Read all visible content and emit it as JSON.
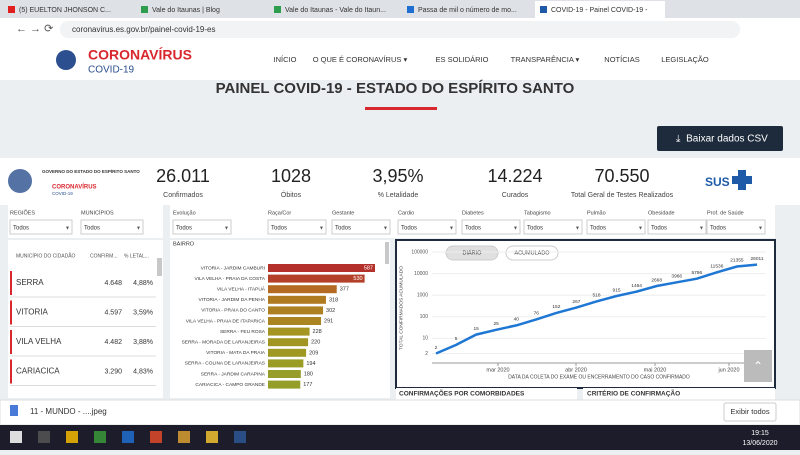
{
  "browser": {
    "tabs": [
      "(5) EUELTON JHONSON C...",
      "Vale do Itaunas | Blog",
      "Vale do Itaunas - Vale do Itaun...",
      "Passa de mil o número de mo...",
      "COVID-19 - Painel COVID-19 -"
    ],
    "url": "coronavirus.es.gov.br/painel-covid-19-es"
  },
  "header": {
    "logo_title": "CORONAVÍRUS",
    "logo_sub": "COVID-19",
    "menu": [
      "INÍCIO",
      "O QUE É CORONAVÍRUS ▾",
      "ES SOLIDÁRIO",
      "TRANSPARÊNCIA ▾",
      "NOTÍCIAS",
      "LEGISLAÇÃO"
    ]
  },
  "page": {
    "title": "PAINEL COVID-19 - ESTADO DO ESPÍRITO SANTO",
    "download_button": "Baixar dados CSV"
  },
  "panel": {
    "gov_text": "GOVERNO DO ESTADO DO ESPÍRITO SANTO",
    "gov_logo_title": "CORONAVÍRUS",
    "gov_logo_sub": "COVID-19",
    "sus": "SUS",
    "stats": [
      {
        "value": "26.011",
        "label": "Confirmados"
      },
      {
        "value": "1028",
        "label": "Óbitos"
      },
      {
        "value": "3,95%",
        "label": "% Letalidade"
      },
      {
        "value": "14.224",
        "label": "Curados"
      },
      {
        "value": "70.550",
        "label": "Total Geral de Testes Realizados"
      }
    ],
    "filters": [
      {
        "label": "REGIÕES",
        "value": "Todos"
      },
      {
        "label": "MUNICÍPIOS",
        "value": "Todos"
      },
      {
        "label": "Evolução",
        "value": "Todos"
      },
      {
        "label": "Raça/Cor",
        "value": "Todos"
      },
      {
        "label": "Gestante",
        "value": "Todos"
      },
      {
        "label": "Cardio",
        "value": "Todos"
      },
      {
        "label": "Diabetes",
        "value": "Todos"
      },
      {
        "label": "Tabagismo",
        "value": "Todos"
      },
      {
        "label": "Pulmão",
        "value": "Todos"
      },
      {
        "label": "Obesidade",
        "value": "Todos"
      },
      {
        "label": "Prof. de Saúde",
        "value": "Todos"
      }
    ],
    "table": {
      "headers": [
        "MUNICÍPIO DO CIDADÃO",
        "CONFIRM...",
        "% LETAL..."
      ],
      "rows": [
        [
          "SERRA",
          "4.648",
          "4,88%"
        ],
        [
          "VITORIA",
          "4.597",
          "3,59%"
        ],
        [
          "VILA VELHA",
          "4.482",
          "3,88%"
        ],
        [
          "CARIACICA",
          "3.290",
          "4,83%"
        ]
      ]
    },
    "bairro_chart": {
      "type": "bar",
      "title": "BAIRRO",
      "categories": [
        "VITORIA - JARDIM CAMBURI",
        "VILA VELHA - PRAIA DA COSTA",
        "VILA VELHA - ITAPUÃ",
        "VITORIA - JARDIM DA PENHA",
        "VITORIA - PRAIA DO CANTO",
        "VILA VELHA - PRAIA DE ITAPARICA",
        "SERRA - FEU ROSA",
        "SERRA - MORADA DE LARANJEIRAS",
        "VITORIA - MATA DA PRAIA",
        "SERRA - COLINA DE LARANJEIRAS",
        "SERRA - JARDIM CARAPINA",
        "CARIACICA - CAMPO GRANDE"
      ],
      "values": [
        587,
        530,
        377,
        318,
        302,
        291,
        228,
        220,
        209,
        194,
        180,
        177
      ],
      "colors": [
        "#b3302b",
        "#b5402a",
        "#b46a22",
        "#b07a20",
        "#ad8121",
        "#ab8521",
        "#a49422",
        "#a29623",
        "#9f9924",
        "#9b9c26",
        "#969d28",
        "#949e29"
      ]
    },
    "line_chart": {
      "type": "line",
      "buttons": [
        "DIÁRIO",
        "ACUMULADO"
      ],
      "ylabel": "TOTAL CONFIRMADOS ACUMULADO",
      "xlabel": "DATA DA COLETA DO EXAME OU ENCERRAMENTO DO CASO CONFIRMADO",
      "log_scale": true,
      "ylim": [
        1,
        100000
      ],
      "yticks": [
        2,
        10,
        100,
        1000,
        10000,
        100000
      ],
      "xtick_labels": [
        "mar 2020",
        "abr 2020",
        "mai 2020",
        "jun 2020"
      ],
      "categories": [
        null,
        null,
        null,
        null,
        null,
        null,
        null,
        null,
        null,
        null,
        null,
        null,
        null,
        null,
        null,
        null,
        null
      ],
      "color": "#1f77d4",
      "values": [
        2,
        5,
        15,
        25,
        40,
        76,
        152,
        267,
        518,
        915,
        1464,
        2668,
        3966,
        5796,
        11536,
        21355,
        26011
      ]
    },
    "bottom_panels": [
      "CONFIRMAÇÕES POR COMORBIDADES",
      "CRITÉRIO DE CONFIRMAÇÃO"
    ]
  },
  "downloads": {
    "file": "11 - MUNDO - ....jpeg",
    "show_all": "Exibir todos"
  },
  "taskbar": {
    "time": "19:15",
    "date": "13/06/2020"
  }
}
